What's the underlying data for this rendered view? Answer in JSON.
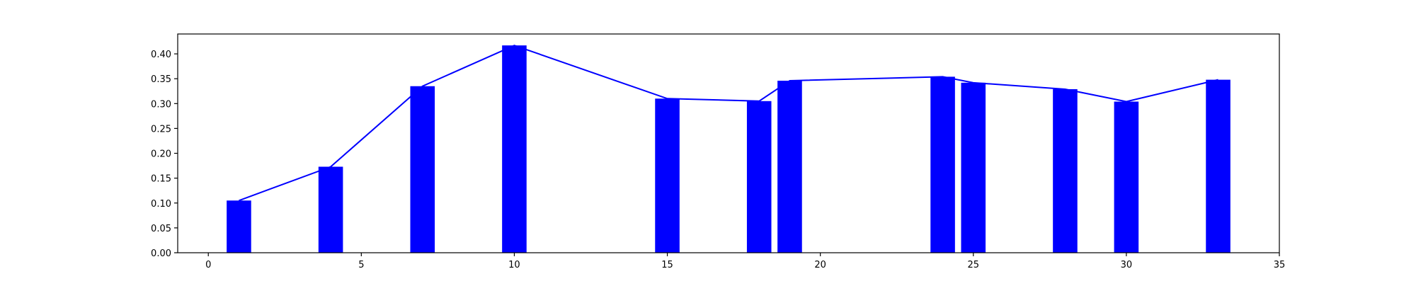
{
  "chart_data": {
    "type": "bar",
    "title": "",
    "xlabel": "",
    "ylabel": "",
    "xlim": [
      -1,
      35
    ],
    "ylim": [
      0,
      0.44
    ],
    "xticks": [
      0,
      5,
      10,
      15,
      20,
      25,
      30,
      35
    ],
    "yticks": [
      0.0,
      0.05,
      0.1,
      0.15,
      0.2,
      0.25,
      0.3,
      0.35,
      0.4
    ],
    "xtick_labels": [
      "0",
      "5",
      "10",
      "15",
      "20",
      "25",
      "30",
      "35"
    ],
    "ytick_labels": [
      "0.00",
      "0.05",
      "0.10",
      "0.15",
      "0.20",
      "0.25",
      "0.30",
      "0.35",
      "0.40"
    ],
    "grid": false,
    "bar_width": 0.8,
    "color": "#0000ff",
    "series": [
      {
        "name": "bars",
        "type": "bar",
        "x": [
          1,
          4,
          7,
          10,
          15,
          18,
          19,
          24,
          25,
          28,
          30,
          33
        ],
        "values": [
          0.105,
          0.173,
          0.335,
          0.417,
          0.31,
          0.305,
          0.346,
          0.354,
          0.342,
          0.329,
          0.304,
          0.348
        ]
      },
      {
        "name": "line",
        "type": "line",
        "x": [
          1,
          4,
          7,
          10,
          15,
          18,
          19,
          24,
          25,
          28,
          30,
          33
        ],
        "values": [
          0.105,
          0.173,
          0.335,
          0.417,
          0.31,
          0.305,
          0.346,
          0.354,
          0.342,
          0.329,
          0.304,
          0.348
        ]
      }
    ]
  }
}
